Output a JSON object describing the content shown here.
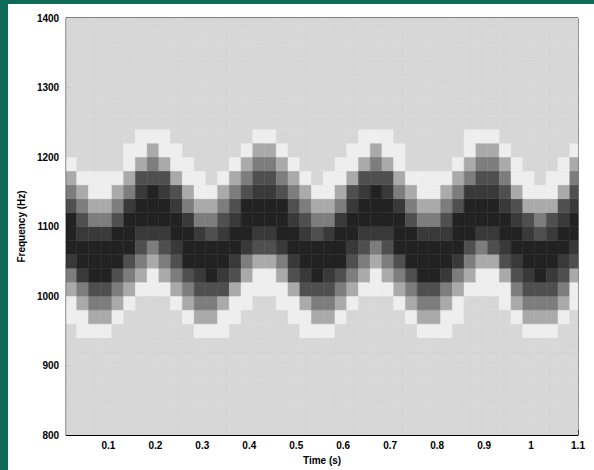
{
  "chart_data": {
    "type": "heatmap",
    "x_label": "Time (s)",
    "y_label": "Frequency (Hz)",
    "xlim": [
      0.01,
      1.1
    ],
    "ylim": [
      800,
      1400
    ],
    "xticks": [
      0.1,
      0.2,
      0.3,
      0.4,
      0.5,
      0.6,
      0.7,
      0.8,
      0.9,
      1,
      1.1
    ],
    "yticks": [
      800,
      900,
      1000,
      1100,
      1200,
      1300,
      1400
    ],
    "grid": false,
    "x": [
      0.02,
      0.045,
      0.07,
      0.095,
      0.12,
      0.145,
      0.17,
      0.195,
      0.22,
      0.245,
      0.27,
      0.295,
      0.32,
      0.345,
      0.37,
      0.395,
      0.42,
      0.445,
      0.47,
      0.495,
      0.52,
      0.545,
      0.57,
      0.595,
      0.62,
      0.645,
      0.67,
      0.695,
      0.72,
      0.745,
      0.77,
      0.795,
      0.82,
      0.845,
      0.87,
      0.895,
      0.92,
      0.945,
      0.97,
      0.995,
      1.02,
      1.045,
      1.07,
      1.095
    ],
    "y": [
      810,
      830,
      850,
      870,
      890,
      910,
      930,
      950,
      970,
      990,
      1010,
      1030,
      1050,
      1070,
      1090,
      1110,
      1130,
      1150,
      1170,
      1190,
      1210,
      1230,
      1250,
      1270,
      1290,
      1310,
      1330,
      1350,
      1370,
      1390
    ],
    "cells": [
      [
        1,
        1,
        1,
        1,
        1,
        1,
        1,
        1,
        1,
        1,
        1,
        1,
        1,
        1,
        1,
        1,
        1,
        1,
        1,
        1,
        1,
        1,
        1,
        1,
        1,
        1,
        1,
        1,
        1,
        1,
        1,
        1,
        1,
        1,
        1,
        1,
        1,
        1,
        1,
        1,
        1,
        1,
        1,
        1
      ],
      [
        1,
        1,
        1,
        1,
        1,
        1,
        1,
        1,
        1,
        1,
        1,
        1,
        1,
        1,
        1,
        1,
        1,
        1,
        1,
        1,
        1,
        1,
        1,
        1,
        1,
        1,
        1,
        1,
        1,
        1,
        1,
        1,
        1,
        1,
        1,
        1,
        1,
        1,
        1,
        1,
        1,
        1,
        1,
        1
      ],
      [
        1,
        1,
        1,
        1,
        1,
        1,
        1,
        1,
        1,
        1,
        1,
        1,
        1,
        1,
        1,
        1,
        1,
        1,
        1,
        1,
        1,
        1,
        1,
        1,
        1,
        1,
        1,
        1,
        1,
        1,
        1,
        1,
        1,
        1,
        1,
        1,
        1,
        1,
        1,
        1,
        1,
        1,
        1,
        1
      ],
      [
        1,
        1,
        1,
        1,
        1,
        1,
        1,
        1,
        1,
        1,
        1,
        1,
        1,
        1,
        1,
        1,
        1,
        1,
        1,
        1,
        1,
        1,
        1,
        1,
        1,
        1,
        1,
        1,
        1,
        1,
        1,
        1,
        1,
        1,
        1,
        1,
        1,
        1,
        1,
        1,
        1,
        1,
        1,
        1
      ],
      [
        1,
        1,
        1,
        1,
        1,
        1,
        1,
        1,
        1,
        1,
        1,
        1,
        1,
        1,
        1,
        1,
        1,
        1,
        1,
        1,
        1,
        1,
        1,
        1,
        1,
        1,
        1,
        1,
        1,
        1,
        1,
        1,
        1,
        1,
        1,
        1,
        1,
        1,
        1,
        1,
        1,
        1,
        1,
        1
      ],
      [
        1,
        1,
        1,
        1,
        1,
        1,
        1,
        1,
        1,
        1,
        1,
        1,
        1,
        1,
        1,
        1,
        1,
        1,
        1,
        1,
        1,
        1,
        1,
        1,
        1,
        1,
        1,
        1,
        1,
        1,
        1,
        1,
        1,
        1,
        1,
        1,
        1,
        1,
        1,
        1,
        1,
        1,
        1,
        1
      ],
      [
        1,
        1,
        1,
        1,
        1,
        1,
        1,
        1,
        1,
        1,
        1,
        1,
        1,
        1,
        1,
        1,
        1,
        1,
        1,
        1,
        1,
        1,
        1,
        1,
        1,
        1,
        1,
        1,
        1,
        1,
        1,
        1,
        1,
        1,
        1,
        1,
        1,
        1,
        1,
        1,
        1,
        1,
        1,
        1
      ],
      [
        1,
        0,
        0,
        0,
        1,
        1,
        1,
        1,
        1,
        1,
        1,
        0,
        0,
        0,
        1,
        1,
        1,
        1,
        1,
        1,
        0,
        0,
        0,
        1,
        1,
        1,
        1,
        1,
        1,
        1,
        0,
        0,
        0,
        1,
        1,
        1,
        1,
        1,
        1,
        0,
        0,
        0,
        1,
        1
      ],
      [
        0,
        0,
        3,
        3,
        0,
        1,
        1,
        1,
        1,
        1,
        0,
        3,
        3,
        0,
        0,
        1,
        1,
        1,
        1,
        0,
        0,
        3,
        3,
        0,
        1,
        1,
        1,
        1,
        1,
        0,
        3,
        3,
        0,
        0,
        1,
        1,
        1,
        1,
        0,
        3,
        3,
        3,
        0,
        1
      ],
      [
        0,
        3,
        5,
        5,
        3,
        0,
        1,
        1,
        1,
        0,
        3,
        5,
        5,
        3,
        0,
        0,
        1,
        1,
        0,
        0,
        3,
        5,
        5,
        3,
        0,
        1,
        1,
        1,
        0,
        3,
        5,
        5,
        3,
        0,
        1,
        1,
        1,
        0,
        3,
        5,
        5,
        5,
        3,
        0
      ],
      [
        3,
        5,
        7,
        7,
        5,
        3,
        0,
        0,
        0,
        3,
        5,
        7,
        7,
        7,
        3,
        0,
        0,
        0,
        0,
        3,
        7,
        7,
        7,
        5,
        3,
        0,
        0,
        0,
        3,
        5,
        7,
        7,
        5,
        3,
        0,
        0,
        0,
        0,
        5,
        7,
        7,
        7,
        5,
        0
      ],
      [
        5,
        8,
        9,
        9,
        7,
        5,
        3,
        0,
        3,
        5,
        7,
        8,
        9,
        8,
        7,
        3,
        0,
        0,
        3,
        7,
        8,
        9,
        8,
        7,
        5,
        3,
        0,
        3,
        5,
        7,
        9,
        9,
        8,
        5,
        3,
        0,
        0,
        3,
        7,
        8,
        9,
        8,
        7,
        3
      ],
      [
        8,
        9,
        9,
        9,
        9,
        7,
        5,
        3,
        5,
        7,
        9,
        9,
        9,
        9,
        8,
        5,
        3,
        3,
        5,
        8,
        9,
        9,
        9,
        9,
        7,
        5,
        3,
        5,
        7,
        9,
        9,
        9,
        9,
        8,
        5,
        3,
        3,
        7,
        8,
        9,
        9,
        9,
        8,
        7
      ],
      [
        9,
        9,
        9,
        9,
        9,
        9,
        7,
        5,
        7,
        8,
        9,
        9,
        9,
        9,
        9,
        8,
        7,
        7,
        8,
        9,
        9,
        9,
        9,
        9,
        8,
        7,
        5,
        7,
        9,
        9,
        9,
        9,
        9,
        9,
        7,
        5,
        7,
        8,
        9,
        9,
        9,
        9,
        9,
        8
      ],
      [
        9,
        8,
        8,
        8,
        9,
        9,
        8,
        8,
        8,
        9,
        9,
        8,
        7,
        8,
        9,
        9,
        8,
        8,
        9,
        9,
        8,
        7,
        8,
        9,
        9,
        8,
        8,
        8,
        9,
        9,
        8,
        8,
        8,
        9,
        9,
        8,
        8,
        9,
        9,
        8,
        7,
        8,
        9,
        9
      ],
      [
        9,
        7,
        5,
        5,
        7,
        9,
        9,
        9,
        9,
        9,
        8,
        5,
        5,
        7,
        8,
        9,
        9,
        9,
        9,
        8,
        7,
        5,
        5,
        8,
        9,
        9,
        9,
        9,
        9,
        7,
        5,
        5,
        7,
        9,
        9,
        9,
        9,
        9,
        8,
        7,
        5,
        7,
        8,
        9
      ],
      [
        7,
        5,
        3,
        3,
        5,
        8,
        9,
        9,
        9,
        8,
        5,
        3,
        3,
        5,
        7,
        9,
        9,
        9,
        9,
        7,
        5,
        3,
        3,
        5,
        8,
        9,
        9,
        9,
        8,
        5,
        3,
        3,
        5,
        7,
        9,
        9,
        9,
        8,
        7,
        3,
        3,
        3,
        7,
        8
      ],
      [
        5,
        3,
        0,
        0,
        3,
        5,
        8,
        9,
        8,
        7,
        3,
        0,
        0,
        3,
        5,
        7,
        8,
        8,
        7,
        5,
        3,
        0,
        0,
        3,
        7,
        8,
        9,
        8,
        5,
        3,
        0,
        0,
        3,
        5,
        8,
        8,
        8,
        7,
        3,
        0,
        0,
        0,
        3,
        7
      ],
      [
        3,
        0,
        0,
        0,
        0,
        3,
        7,
        7,
        7,
        3,
        0,
        0,
        1,
        0,
        3,
        5,
        7,
        7,
        5,
        3,
        0,
        1,
        0,
        0,
        3,
        7,
        7,
        7,
        3,
        0,
        0,
        0,
        0,
        3,
        5,
        7,
        7,
        5,
        0,
        0,
        1,
        0,
        0,
        5
      ],
      [
        0,
        1,
        1,
        1,
        1,
        0,
        3,
        5,
        3,
        0,
        0,
        1,
        1,
        1,
        0,
        3,
        5,
        5,
        3,
        0,
        1,
        1,
        1,
        0,
        0,
        3,
        5,
        3,
        0,
        1,
        1,
        1,
        1,
        0,
        3,
        5,
        5,
        3,
        0,
        1,
        1,
        1,
        0,
        3
      ],
      [
        1,
        1,
        1,
        1,
        1,
        0,
        0,
        3,
        0,
        0,
        1,
        1,
        1,
        1,
        1,
        0,
        3,
        3,
        0,
        1,
        1,
        1,
        1,
        1,
        0,
        0,
        3,
        0,
        0,
        1,
        1,
        1,
        1,
        1,
        0,
        3,
        3,
        0,
        1,
        1,
        1,
        1,
        1,
        0
      ],
      [
        1,
        1,
        1,
        1,
        1,
        1,
        0,
        0,
        0,
        1,
        1,
        1,
        1,
        1,
        1,
        1,
        0,
        0,
        1,
        1,
        1,
        1,
        1,
        1,
        1,
        0,
        0,
        0,
        1,
        1,
        1,
        1,
        1,
        1,
        0,
        0,
        0,
        1,
        1,
        1,
        1,
        1,
        1,
        1
      ],
      [
        1,
        1,
        1,
        1,
        1,
        1,
        1,
        1,
        1,
        1,
        1,
        1,
        1,
        1,
        1,
        1,
        1,
        1,
        1,
        1,
        1,
        1,
        1,
        1,
        1,
        1,
        1,
        1,
        1,
        1,
        1,
        1,
        1,
        1,
        1,
        1,
        1,
        1,
        1,
        1,
        1,
        1,
        1,
        1
      ],
      [
        1,
        1,
        1,
        1,
        1,
        1,
        1,
        1,
        1,
        1,
        1,
        1,
        1,
        1,
        1,
        1,
        1,
        1,
        1,
        1,
        1,
        1,
        1,
        1,
        1,
        1,
        1,
        1,
        1,
        1,
        1,
        1,
        1,
        1,
        1,
        1,
        1,
        1,
        1,
        1,
        1,
        1,
        1,
        1
      ],
      [
        1,
        1,
        1,
        1,
        1,
        1,
        1,
        1,
        1,
        1,
        1,
        1,
        1,
        1,
        1,
        1,
        1,
        1,
        1,
        1,
        1,
        1,
        1,
        1,
        1,
        1,
        1,
        1,
        1,
        1,
        1,
        1,
        1,
        1,
        1,
        1,
        1,
        1,
        1,
        1,
        1,
        1,
        1,
        1
      ],
      [
        1,
        1,
        1,
        1,
        1,
        1,
        1,
        1,
        1,
        1,
        1,
        1,
        1,
        1,
        1,
        1,
        1,
        1,
        1,
        1,
        1,
        1,
        1,
        1,
        1,
        1,
        1,
        1,
        1,
        1,
        1,
        1,
        1,
        1,
        1,
        1,
        1,
        1,
        1,
        1,
        1,
        1,
        1,
        1
      ],
      [
        1,
        1,
        1,
        1,
        1,
        1,
        1,
        1,
        1,
        1,
        1,
        1,
        1,
        1,
        1,
        1,
        1,
        1,
        1,
        1,
        1,
        1,
        1,
        1,
        1,
        1,
        1,
        1,
        1,
        1,
        1,
        1,
        1,
        1,
        1,
        1,
        1,
        1,
        1,
        1,
        1,
        1,
        1,
        1
      ],
      [
        1,
        1,
        1,
        1,
        1,
        1,
        1,
        1,
        1,
        1,
        1,
        1,
        1,
        1,
        1,
        1,
        1,
        1,
        1,
        1,
        1,
        1,
        1,
        1,
        1,
        1,
        1,
        1,
        1,
        1,
        1,
        1,
        1,
        1,
        1,
        1,
        1,
        1,
        1,
        1,
        1,
        1,
        1,
        1
      ],
      [
        1,
        1,
        1,
        1,
        1,
        1,
        1,
        1,
        1,
        1,
        1,
        1,
        1,
        1,
        1,
        1,
        1,
        1,
        1,
        1,
        1,
        1,
        1,
        1,
        1,
        1,
        1,
        1,
        1,
        1,
        1,
        1,
        1,
        1,
        1,
        1,
        1,
        1,
        1,
        1,
        1,
        1,
        1,
        1
      ],
      [
        1,
        1,
        1,
        1,
        1,
        1,
        1,
        1,
        1,
        1,
        1,
        1,
        1,
        1,
        1,
        1,
        1,
        1,
        1,
        1,
        1,
        1,
        1,
        1,
        1,
        1,
        1,
        1,
        1,
        1,
        1,
        1,
        1,
        1,
        1,
        1,
        1,
        1,
        1,
        1,
        1,
        1,
        1,
        1
      ]
    ]
  }
}
